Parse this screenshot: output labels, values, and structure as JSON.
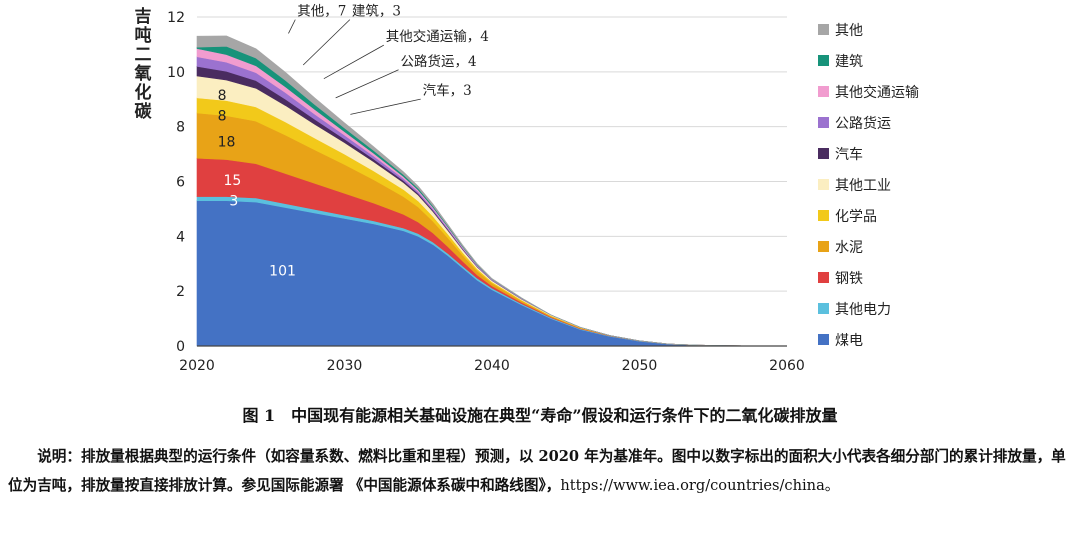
{
  "chart_data": {
    "type": "area",
    "stacked": true,
    "ylabel": "吉吨二氧化碳",
    "xlim": [
      2020,
      2060
    ],
    "ylim": [
      0,
      12
    ],
    "x_ticks": [
      "2020",
      "2030",
      "2040",
      "2050",
      "2060"
    ],
    "y_ticks": [
      "0",
      "2",
      "4",
      "6",
      "8",
      "10",
      "12"
    ],
    "grid": "horizontal",
    "legend_position": "right",
    "x": [
      2020,
      2022,
      2024,
      2026,
      2028,
      2030,
      2032,
      2034,
      2035,
      2036,
      2037,
      2038,
      2039,
      2040,
      2042,
      2044,
      2046,
      2048,
      2050,
      2052,
      2054,
      2056,
      2058,
      2060
    ],
    "series": [
      {
        "name": "煤电",
        "color": "#4472c4",
        "values": [
          5.3,
          5.3,
          5.25,
          5.05,
          4.85,
          4.65,
          4.45,
          4.2,
          4.0,
          3.7,
          3.3,
          2.85,
          2.4,
          2.05,
          1.5,
          1.0,
          0.6,
          0.35,
          0.17,
          0.07,
          0.03,
          0.01,
          0.005,
          0
        ]
      },
      {
        "name": "其他电力",
        "color": "#5bc0de",
        "values": [
          0.15,
          0.15,
          0.15,
          0.14,
          0.13,
          0.12,
          0.11,
          0.1,
          0.1,
          0.09,
          0.08,
          0.07,
          0.07,
          0.06,
          0.04,
          0.03,
          0.02,
          0.01,
          0.01,
          0,
          0,
          0,
          0,
          0
        ]
      },
      {
        "name": "钢铁",
        "color": "#e04040",
        "values": [
          1.4,
          1.35,
          1.25,
          1.1,
          0.95,
          0.8,
          0.65,
          0.5,
          0.42,
          0.33,
          0.25,
          0.18,
          0.12,
          0.08,
          0.05,
          0.03,
          0.02,
          0.01,
          0.01,
          0,
          0,
          0,
          0,
          0
        ]
      },
      {
        "name": "水泥",
        "color": "#e8a317",
        "values": [
          1.65,
          1.6,
          1.55,
          1.4,
          1.22,
          1.05,
          0.85,
          0.65,
          0.55,
          0.43,
          0.32,
          0.22,
          0.15,
          0.1,
          0.06,
          0.03,
          0.02,
          0.01,
          0,
          0,
          0,
          0,
          0,
          0
        ]
      },
      {
        "name": "化学品",
        "color": "#f2c91a",
        "values": [
          0.55,
          0.55,
          0.52,
          0.48,
          0.43,
          0.38,
          0.32,
          0.26,
          0.22,
          0.18,
          0.14,
          0.1,
          0.07,
          0.05,
          0.03,
          0.02,
          0.01,
          0,
          0,
          0,
          0,
          0,
          0,
          0
        ]
      },
      {
        "name": "其他工业",
        "color": "#fbeec1",
        "values": [
          0.8,
          0.75,
          0.68,
          0.6,
          0.5,
          0.42,
          0.33,
          0.25,
          0.21,
          0.17,
          0.13,
          0.1,
          0.07,
          0.05,
          0.03,
          0.02,
          0.01,
          0,
          0,
          0,
          0,
          0,
          0,
          0
        ]
      },
      {
        "name": "汽车",
        "color": "#4a2c60",
        "values": [
          0.35,
          0.32,
          0.28,
          0.23,
          0.18,
          0.13,
          0.1,
          0.07,
          0.06,
          0.05,
          0.04,
          0.03,
          0.02,
          0.01,
          0.01,
          0,
          0,
          0,
          0,
          0,
          0,
          0,
          0,
          0
        ]
      },
      {
        "name": "公路货运",
        "color": "#9b72cf",
        "values": [
          0.35,
          0.33,
          0.29,
          0.24,
          0.19,
          0.14,
          0.11,
          0.08,
          0.07,
          0.06,
          0.05,
          0.04,
          0.03,
          0.02,
          0.01,
          0,
          0,
          0,
          0,
          0,
          0,
          0,
          0,
          0
        ]
      },
      {
        "name": "其他交通运输",
        "color": "#f19ccf",
        "values": [
          0.3,
          0.28,
          0.25,
          0.21,
          0.17,
          0.13,
          0.1,
          0.07,
          0.06,
          0.05,
          0.04,
          0.03,
          0.02,
          0.01,
          0.01,
          0,
          0,
          0,
          0,
          0,
          0,
          0,
          0,
          0
        ]
      },
      {
        "name": "建筑",
        "color": "#17937a",
        "values": [
          0.05,
          0.3,
          0.28,
          0.24,
          0.18,
          0.13,
          0.1,
          0.07,
          0.06,
          0.05,
          0.04,
          0.03,
          0.02,
          0.01,
          0.01,
          0,
          0,
          0,
          0,
          0,
          0,
          0,
          0,
          0
        ]
      },
      {
        "name": "其他",
        "color": "#a6a6a6",
        "values": [
          0.4,
          0.38,
          0.34,
          0.29,
          0.24,
          0.19,
          0.14,
          0.1,
          0.08,
          0.07,
          0.05,
          0.04,
          0.03,
          0.02,
          0.01,
          0,
          0,
          0,
          0,
          0,
          0,
          0,
          0,
          0
        ]
      }
    ],
    "inside_labels": [
      {
        "text": "101",
        "x": 2025.8,
        "y": 2.75,
        "color": "#ffffff"
      },
      {
        "text": "3",
        "x": 2022.5,
        "y": 5.3,
        "color": "#ffffff"
      },
      {
        "text": "15",
        "x": 2022.4,
        "y": 6.05,
        "color": "#ffffff"
      },
      {
        "text": "18",
        "x": 2022.0,
        "y": 7.45,
        "color": "#222222"
      },
      {
        "text": "8",
        "x": 2021.7,
        "y": 8.4,
        "color": "#222222"
      },
      {
        "text": "8",
        "x": 2021.7,
        "y": 9.15,
        "color": "#222222"
      }
    ],
    "callouts": [
      {
        "text": "其他，7",
        "x": 2026.8,
        "y": 12.05,
        "tx": 2026.2,
        "ty": 11.4
      },
      {
        "text": "建筑，3",
        "x": 2030.5,
        "y": 12.05,
        "tx": 2027.2,
        "ty": 10.25
      },
      {
        "text": "其他交通运输，4",
        "x": 2032.8,
        "y": 11.12,
        "tx": 2028.6,
        "ty": 9.75
      },
      {
        "text": "公路货运，4",
        "x": 2033.8,
        "y": 10.22,
        "tx": 2029.4,
        "ty": 9.05
      },
      {
        "text": "汽车，3",
        "x": 2035.3,
        "y": 9.15,
        "tx": 2030.4,
        "ty": 8.45
      }
    ]
  },
  "caption": "图 1　中国现有能源相关基础设施在典型“寿命”假设和运行条件下的二氧化碳排放量",
  "note_text": "说明：排放量根据典型的运行条件（如容量系数、燃料比重和里程）预测，以 2020 年为基准年。图中以数字标出的面积大小代表各细分部门的累计排放量，单位为吉吨，排放量按直接排放计算。参见国际能源署 《中国能源体系碳中和路线图》，",
  "note_url": "https://www.iea.org/countries/china。"
}
